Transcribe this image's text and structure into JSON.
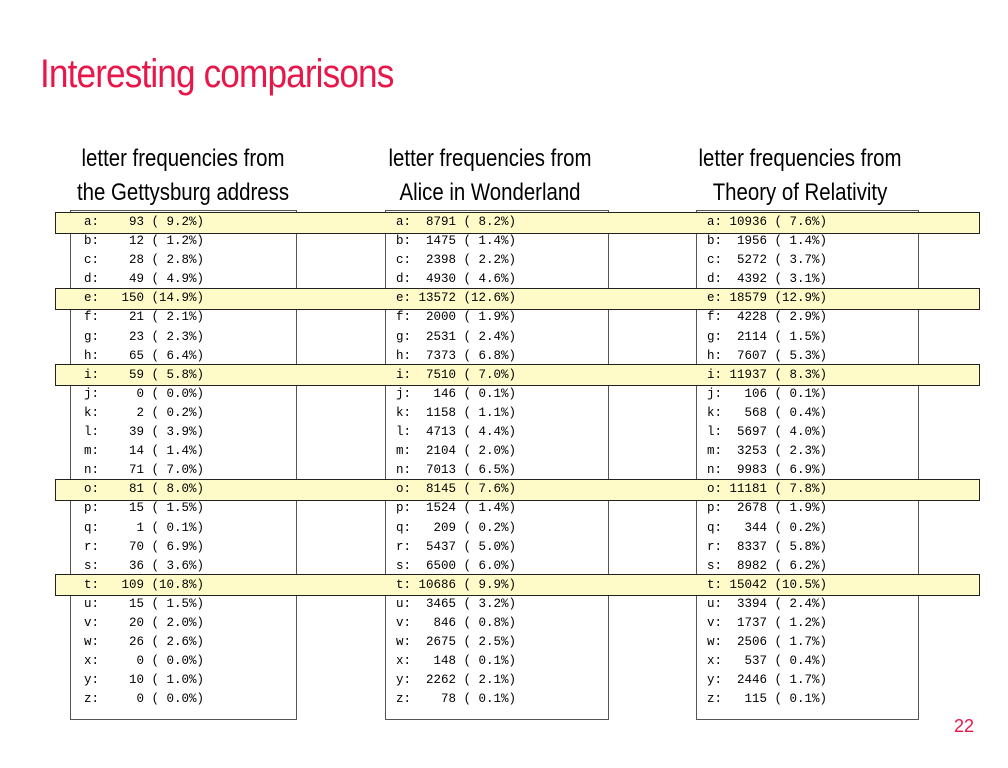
{
  "slide": {
    "title": "Interesting comparisons",
    "number": "22",
    "accent_color": "#e8174a",
    "highlight_color": "#fffbc8"
  },
  "columns": [
    {
      "heading_line1": "letter frequencies from",
      "heading_line2": "the Gettysburg address",
      "rows": [
        "a:    93 ( 9.2%)",
        "b:    12 ( 1.2%)",
        "c:    28 ( 2.8%)",
        "d:    49 ( 4.9%)",
        "e:   150 (14.9%)",
        "f:    21 ( 2.1%)",
        "g:    23 ( 2.3%)",
        "h:    65 ( 6.4%)",
        "i:    59 ( 5.8%)",
        "j:     0 ( 0.0%)",
        "k:     2 ( 0.2%)",
        "l:    39 ( 3.9%)",
        "m:    14 ( 1.4%)",
        "n:    71 ( 7.0%)",
        "o:    81 ( 8.0%)",
        "p:    15 ( 1.5%)",
        "q:     1 ( 0.1%)",
        "r:    70 ( 6.9%)",
        "s:    36 ( 3.6%)",
        "t:   109 (10.8%)",
        "u:    15 ( 1.5%)",
        "v:    20 ( 2.0%)",
        "w:    26 ( 2.6%)",
        "x:     0 ( 0.0%)",
        "y:    10 ( 1.0%)",
        "z:     0 ( 0.0%)"
      ]
    },
    {
      "heading_line1": "letter frequencies from",
      "heading_line2": "Alice in Wonderland",
      "rows": [
        "a:  8791 ( 8.2%)",
        "b:  1475 ( 1.4%)",
        "c:  2398 ( 2.2%)",
        "d:  4930 ( 4.6%)",
        "e: 13572 (12.6%)",
        "f:  2000 ( 1.9%)",
        "g:  2531 ( 2.4%)",
        "h:  7373 ( 6.8%)",
        "i:  7510 ( 7.0%)",
        "j:   146 ( 0.1%)",
        "k:  1158 ( 1.1%)",
        "l:  4713 ( 4.4%)",
        "m:  2104 ( 2.0%)",
        "n:  7013 ( 6.5%)",
        "o:  8145 ( 7.6%)",
        "p:  1524 ( 1.4%)",
        "q:   209 ( 0.2%)",
        "r:  5437 ( 5.0%)",
        "s:  6500 ( 6.0%)",
        "t: 10686 ( 9.9%)",
        "u:  3465 ( 3.2%)",
        "v:   846 ( 0.8%)",
        "w:  2675 ( 2.5%)",
        "x:   148 ( 0.1%)",
        "y:  2262 ( 2.1%)",
        "z:    78 ( 0.1%)"
      ]
    },
    {
      "heading_line1": "letter frequencies from",
      "heading_line2": "Theory of Relativity",
      "rows": [
        "a: 10936 ( 7.6%)",
        "b:  1956 ( 1.4%)",
        "c:  5272 ( 3.7%)",
        "d:  4392 ( 3.1%)",
        "e: 18579 (12.9%)",
        "f:  4228 ( 2.9%)",
        "g:  2114 ( 1.5%)",
        "h:  7607 ( 5.3%)",
        "i: 11937 ( 8.3%)",
        "j:   106 ( 0.1%)",
        "k:   568 ( 0.4%)",
        "l:  5697 ( 4.0%)",
        "m:  3253 ( 2.3%)",
        "n:  9983 ( 6.9%)",
        "o: 11181 ( 7.8%)",
        "p:  2678 ( 1.9%)",
        "q:   344 ( 0.2%)",
        "r:  8337 ( 5.8%)",
        "s:  8982 ( 6.2%)",
        "t: 15042 (10.5%)",
        "u:  3394 ( 2.4%)",
        "v:  1737 ( 1.2%)",
        "w:  2506 ( 1.7%)",
        "x:   537 ( 0.4%)",
        "y:  2446 ( 1.7%)",
        "z:   115 ( 0.1%)"
      ]
    }
  ],
  "highlighted_letters": [
    "a",
    "e",
    "i",
    "o",
    "t"
  ]
}
